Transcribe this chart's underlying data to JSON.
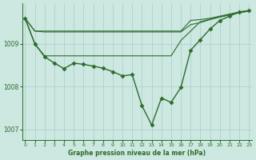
{
  "background_color": "#cce8e0",
  "grid_color": "#aacccc",
  "line_color": "#2d6b2d",
  "marker_color": "#2d6b2d",
  "xlabel": "Graphe pression niveau de la mer (hPa)",
  "ylim": [
    1006.75,
    1009.95
  ],
  "xlim": [
    -0.3,
    23.3
  ],
  "yticks": [
    1007,
    1008,
    1009
  ],
  "xticks": [
    0,
    1,
    2,
    3,
    4,
    5,
    6,
    7,
    8,
    9,
    10,
    11,
    12,
    13,
    14,
    15,
    16,
    17,
    18,
    19,
    20,
    21,
    22,
    23
  ],
  "series": [
    {
      "y": [
        1009.6,
        1009.0,
        1008.7,
        1008.55,
        1008.42,
        1008.55,
        1008.52,
        1008.48,
        1008.43,
        1008.35,
        1008.25,
        1008.28,
        1007.55,
        1007.1,
        1007.73,
        1007.63,
        1007.98,
        1008.85,
        1009.1,
        1009.35,
        1009.55,
        1009.65,
        1009.75,
        1009.78
      ],
      "marker": "D",
      "ms": 2.5,
      "lw": 1.0
    },
    {
      "y": [
        1009.6,
        1009.0,
        1008.72,
        1008.72,
        1008.72,
        1008.72,
        1008.72,
        1008.72,
        1008.72,
        1008.72,
        1008.72,
        1008.72,
        1008.72,
        1008.72,
        1008.72,
        1008.72,
        1009.08,
        1009.3,
        1009.52,
        1009.58,
        1009.63,
        1009.68,
        1009.73,
        1009.77
      ],
      "marker": null,
      "ms": 0,
      "lw": 0.8
    },
    {
      "y": [
        1009.6,
        1009.3,
        1009.3,
        1009.3,
        1009.3,
        1009.3,
        1009.3,
        1009.3,
        1009.3,
        1009.3,
        1009.3,
        1009.3,
        1009.3,
        1009.3,
        1009.3,
        1009.3,
        1009.3,
        1009.55,
        1009.57,
        1009.6,
        1009.65,
        1009.7,
        1009.75,
        1009.77
      ],
      "marker": null,
      "ms": 0,
      "lw": 0.8
    },
    {
      "y": [
        1009.6,
        1009.3,
        1009.28,
        1009.28,
        1009.28,
        1009.28,
        1009.28,
        1009.28,
        1009.28,
        1009.28,
        1009.28,
        1009.28,
        1009.28,
        1009.28,
        1009.28,
        1009.28,
        1009.28,
        1009.45,
        1009.5,
        1009.57,
        1009.63,
        1009.68,
        1009.73,
        1009.77
      ],
      "marker": null,
      "ms": 0,
      "lw": 0.8
    }
  ]
}
